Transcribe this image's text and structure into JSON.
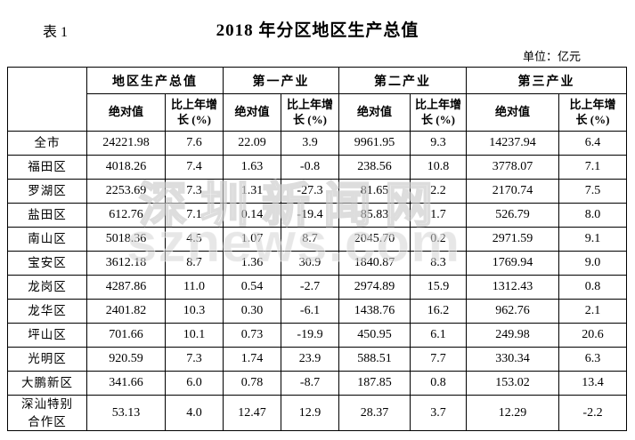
{
  "page": {
    "table_label": "表 1",
    "title": "2018 年分区地区生产总值",
    "unit_note": "单位：亿元"
  },
  "watermark": {
    "line1": "深圳新闻网",
    "line2": "sznews.com"
  },
  "table": {
    "region_column_header": "",
    "groups": [
      {
        "label": "地区生产总值"
      },
      {
        "label": "第一产业"
      },
      {
        "label": "第二产业"
      },
      {
        "label": "第三产业"
      }
    ],
    "sub_headers": [
      "绝对值",
      "比上年增\n长 (%)"
    ],
    "rows": [
      {
        "region": "全市",
        "values": [
          "24221.98",
          "7.6",
          "22.09",
          "3.9",
          "9961.95",
          "9.3",
          "14237.94",
          "6.4"
        ]
      },
      {
        "region": "福田区",
        "values": [
          "4018.26",
          "7.4",
          "1.63",
          "-0.8",
          "238.56",
          "10.8",
          "3778.07",
          "7.1"
        ]
      },
      {
        "region": "罗湖区",
        "values": [
          "2253.69",
          "7.3",
          "1.31",
          "-27.3",
          "81.65",
          "2.2",
          "2170.74",
          "7.5"
        ]
      },
      {
        "region": "盐田区",
        "values": [
          "612.76",
          "7.1",
          "0.14",
          "-19.4",
          "85.83",
          "1.7",
          "526.79",
          "8.0"
        ]
      },
      {
        "region": "南山区",
        "values": [
          "5018.36",
          "4.5",
          "1.07",
          "8.7",
          "2045.70",
          "0.2",
          "2971.59",
          "9.1"
        ]
      },
      {
        "region": "宝安区",
        "values": [
          "3612.18",
          "8.7",
          "1.36",
          "30.9",
          "1840.87",
          "8.3",
          "1769.94",
          "9.0"
        ]
      },
      {
        "region": "龙岗区",
        "values": [
          "4287.86",
          "11.0",
          "0.54",
          "-2.7",
          "2974.89",
          "15.9",
          "1312.43",
          "0.8"
        ]
      },
      {
        "region": "龙华区",
        "values": [
          "2401.82",
          "10.3",
          "0.30",
          "-6.1",
          "1438.76",
          "16.2",
          "962.76",
          "2.1"
        ]
      },
      {
        "region": "坪山区",
        "values": [
          "701.66",
          "10.1",
          "0.73",
          "-19.9",
          "450.95",
          "6.1",
          "249.98",
          "20.6"
        ]
      },
      {
        "region": "光明区",
        "values": [
          "920.59",
          "7.3",
          "1.74",
          "23.9",
          "588.51",
          "7.7",
          "330.34",
          "6.3"
        ]
      },
      {
        "region": "大鹏新区",
        "values": [
          "341.66",
          "6.0",
          "0.78",
          "-8.7",
          "187.85",
          "0.8",
          "153.02",
          "13.4"
        ]
      },
      {
        "region": "深汕特别合作区",
        "values": [
          "53.13",
          "4.0",
          "12.47",
          "12.9",
          "28.37",
          "3.7",
          "12.29",
          "-2.2"
        ]
      }
    ]
  }
}
